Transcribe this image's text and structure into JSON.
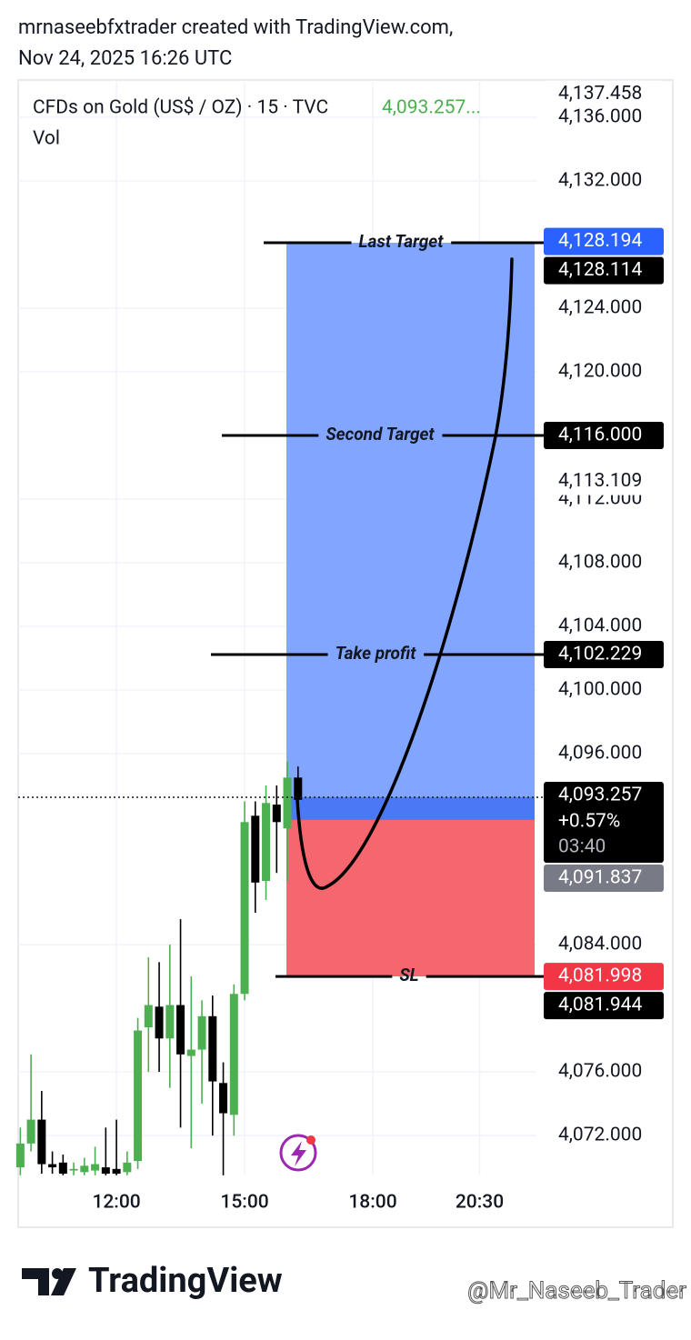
{
  "header": {
    "author_line": "mrnaseebfxtrader created with TradingView.com,",
    "date": "Nov 24, 2025 16:26 UTC"
  },
  "footer": {
    "brand": "TradingView",
    "watermark": "@Mr_Naseeb_Trader"
  },
  "chart_data": {
    "type": "candlestick",
    "symbol": "CFDs on Gold (US$ / OZ) · 15 · TVC",
    "last_price": {
      "value": 4093.257,
      "label": "4,093.257..."
    },
    "volume_label": "Vol",
    "up_color": "#4caf50",
    "down_color": "#000000",
    "x": [
      9.75,
      10,
      10.25,
      10.5,
      10.75,
      11,
      11.25,
      11.5,
      11.75,
      12,
      12.25,
      12.5,
      12.75,
      13,
      13.25,
      13.5,
      13.75,
      14,
      14.25,
      14.5,
      14.75,
      15,
      15.25,
      15.5,
      15.75,
      16,
      16.25
    ],
    "open": [
      4070.0,
      4071.5,
      4073.0,
      4070.2,
      4070.3,
      4069.8,
      4069.7,
      4069.8,
      4070.0,
      4069.9,
      4069.7,
      4070.4,
      4078.8,
      4080.1,
      4078.1,
      4080.2,
      4077.0,
      4077.4,
      4079.5,
      4075.3,
      4073.3,
      4080.9,
      4092.1,
      4088.0,
      4092.8,
      4091.3,
      4094.5
    ],
    "high": [
      4072.5,
      4077.1,
      4074.8,
      4071.0,
      4070.8,
      4070.3,
      4070.6,
      4071.3,
      4072.5,
      4073.0,
      4071.0,
      4079.4,
      4083.2,
      4082.9,
      4084.0,
      4085.6,
      4082.0,
      4080.5,
      4080.8,
      4076.6,
      4081.5,
      4093.0,
      4093.0,
      4094.0,
      4094.0,
      4095.5,
      4095.2
    ],
    "low": [
      4069.5,
      4071.0,
      4069.6,
      4069.6,
      4069.5,
      4069.5,
      4069.5,
      4069.5,
      4069.5,
      4069.5,
      4069.5,
      4069.9,
      4076.0,
      4076.0,
      4075.0,
      4072.5,
      4071.2,
      4074.0,
      4072.0,
      4069.5,
      4072.0,
      4080.5,
      4086.0,
      4086.8,
      4088.5,
      4088.0,
      4092.5
    ],
    "close": [
      4071.5,
      4073.0,
      4070.2,
      4070.0,
      4069.6,
      4069.9,
      4070.1,
      4070.2,
      4069.6,
      4069.6,
      4070.3,
      4078.6,
      4080.2,
      4078.1,
      4080.2,
      4077.1,
      4077.4,
      4079.5,
      4075.4,
      4073.4,
      4080.9,
      4091.7,
      4087.9,
      4092.9,
      4091.7,
      4094.5,
      4093.1
    ],
    "xlim": [
      9.7,
      21.83
    ],
    "xticks": [
      {
        "value": 12,
        "label": "12:00"
      },
      {
        "value": 15,
        "label": "15:00"
      },
      {
        "value": 18,
        "label": "18:00"
      },
      {
        "value": 20.5,
        "label": "20:30"
      }
    ],
    "ylim": [
      4069.49,
      4138.23
    ],
    "yticks": [
      {
        "value": 4072,
        "label": "4,072.000"
      },
      {
        "value": 4076,
        "label": "4,076.000"
      },
      {
        "value": 4084,
        "label": "4,084.000"
      },
      {
        "value": 4096,
        "label": "4,096.000"
      },
      {
        "value": 4100,
        "label": "4,100.000"
      },
      {
        "value": 4104,
        "label": "4,104.000"
      },
      {
        "value": 4108,
        "label": "4,108.000"
      },
      {
        "value": 4112,
        "label": "4,112.000"
      },
      {
        "value": 4120,
        "label": "4,120.000"
      },
      {
        "value": 4124,
        "label": "4,124.000"
      },
      {
        "value": 4132,
        "label": "4,132.000"
      },
      {
        "value": 4136,
        "label": "4,136.000"
      }
    ],
    "grid": true,
    "current_price": 4093.257,
    "position": {
      "target": 4128.114,
      "entry": 4091.837,
      "stop": 4081.998,
      "target_color": "#82a5ff",
      "stop_color": "#f5666f",
      "profit_color": "#4b78f5"
    },
    "annotations": [
      {
        "label": "Last Target",
        "value": 4128.114
      },
      {
        "label": "Second Target",
        "value": 4116
      },
      {
        "label": "Take profit",
        "value": 4102.229
      },
      {
        "label": "SL",
        "value": 4081.998
      }
    ],
    "price_labels": [
      {
        "value": 4137.458,
        "label": "4,137.458",
        "color": null
      },
      {
        "value": 4128.194,
        "label": "4,128.194",
        "color": "#2962ff"
      },
      {
        "value": 4128.114,
        "label": "4,128.114",
        "color": "#000000"
      },
      {
        "value": 4116,
        "label": "4,116.000",
        "color": "#000000"
      },
      {
        "value": 4113.109,
        "label": "4,113.109",
        "color": null
      },
      {
        "value": 4102.229,
        "label": "4,102.229",
        "color": "#000000"
      },
      {
        "value": 4093.257,
        "label": "4,093.257",
        "color": "#000000",
        "change": {
          "value": 0.57,
          "label": "+0.57%"
        },
        "countdown": "03:40"
      },
      {
        "value": 4091.837,
        "label": "4,091.837",
        "color": "#787b86"
      },
      {
        "value": 4081.998,
        "label": "4,081.998",
        "color": "#f23645"
      },
      {
        "value": 4081.944,
        "label": "4,081.944",
        "color": "#000000"
      }
    ]
  }
}
